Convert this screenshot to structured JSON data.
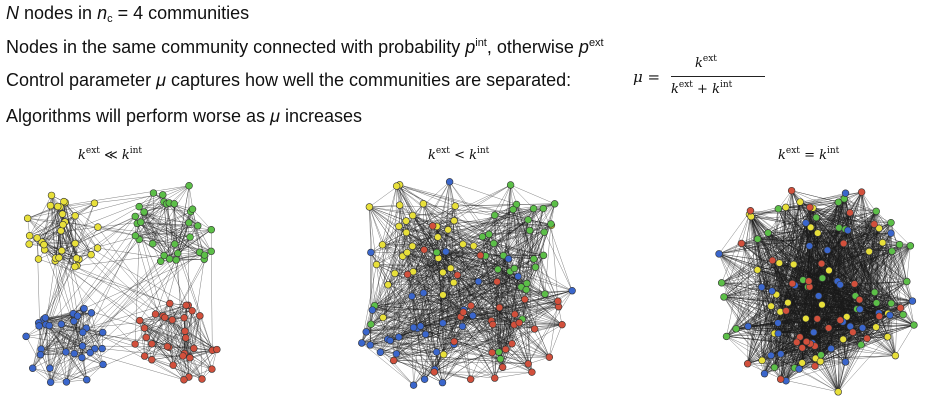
{
  "text": {
    "line1": {
      "n": "N",
      "a": " nodes in ",
      "nc": "n",
      "c": "c",
      "b": " = 4 communities"
    },
    "line2": {
      "a": "Nodes in the same community connected with probability ",
      "p1": "p",
      "s1": "int",
      "mid": ", otherwise ",
      "p2": "p",
      "s2": "ext"
    },
    "line3": {
      "a": "Control parameter ",
      "mu": "μ",
      "b": " captures how well the communities are separated:"
    },
    "formula": {
      "mu": "μ =",
      "num": "k",
      "num_sup": "ext",
      "den": "k",
      "den_sup1": "ext",
      "plus": " + k",
      "den_sup2": "int"
    },
    "line4": {
      "a": "Algorithms will perform worse as ",
      "mu": "μ",
      "b": " increases"
    }
  },
  "panels": [
    {
      "label_k1": "k",
      "sup1": "ext",
      "op": "≪",
      "label_k2": "k",
      "sup2": "int"
    },
    {
      "label_k1": "k",
      "sup1": "ext",
      "op": "<",
      "label_k2": "k",
      "sup2": "int"
    },
    {
      "label_k1": "k",
      "sup1": "ext",
      "op": "=",
      "label_k2": "k",
      "sup2": "int"
    }
  ],
  "colors": {
    "yellow": "#e8e03a",
    "green": "#5cbf48",
    "blue": "#3a66cc",
    "red": "#d2503c",
    "edge": "#1a1a1a"
  }
}
